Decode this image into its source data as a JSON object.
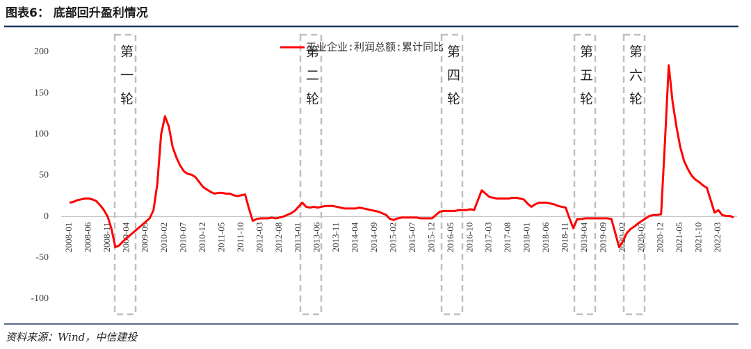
{
  "chart_data": {
    "type": "line",
    "title": "图表6： 底部回升盈利情况",
    "source": "资料来源：Wind，中信建投",
    "annotations": [
      "第一轮",
      "第二轮",
      "第四轮",
      "第五轮",
      "第六轮"
    ],
    "categories": [
      "2008-01",
      null,
      null,
      null,
      null,
      "2008-06",
      null,
      null,
      null,
      null,
      "2008-11",
      null,
      null,
      null,
      null,
      "2009-04",
      null,
      null,
      null,
      null,
      "2009-09",
      null,
      null,
      null,
      null,
      "2010-02",
      null,
      null,
      null,
      null,
      "2010-07",
      null,
      null,
      null,
      null,
      "2010-12",
      null,
      null,
      null,
      null,
      "2011-05",
      null,
      null,
      null,
      null,
      "2011-10",
      null,
      null,
      null,
      null,
      "2012-03",
      null,
      null,
      null,
      null,
      "2012-08",
      null,
      null,
      null,
      null,
      "2013-01",
      null,
      null,
      null,
      null,
      "2013-06",
      null,
      null,
      null,
      null,
      "2013-11",
      null,
      null,
      null,
      null,
      "2014-04",
      null,
      null,
      null,
      null,
      "2014-09",
      null,
      null,
      null,
      null,
      "2015-02",
      null,
      null,
      null,
      null,
      "2015-07",
      null,
      null,
      null,
      null,
      "2015-12",
      null,
      null,
      null,
      null,
      "2016-05",
      null,
      null,
      null,
      null,
      "2016-10",
      null,
      null,
      null,
      null,
      "2017-03",
      null,
      null,
      null,
      null,
      "2017-08",
      null,
      null,
      null,
      null,
      "2018-01",
      null,
      null,
      null,
      null,
      "2018-06",
      null,
      null,
      null,
      null,
      "2018-11",
      null,
      null,
      null,
      null,
      "2019-04",
      null,
      null,
      null,
      null,
      "2019-09",
      null,
      null,
      null,
      null,
      "2020-02",
      null,
      null,
      null,
      null,
      "2020-07",
      null,
      null,
      null,
      null,
      "2020-12",
      null,
      null,
      null,
      null,
      "2021-05",
      null,
      null,
      null,
      null,
      "2021-10",
      null,
      null,
      null,
      null,
      "2022-03",
      null,
      null,
      null,
      null
    ],
    "series": [
      {
        "name": "工业企业:利润总额:累计同比",
        "color": "#ff0000",
        "values": [
          17,
          18,
          20,
          21,
          22,
          22,
          21,
          19,
          14,
          8,
          0,
          -15,
          -37,
          -35,
          -30,
          -26,
          -22,
          -18,
          -14,
          -10,
          -6,
          -2,
          8,
          40,
          100,
          122,
          110,
          85,
          72,
          62,
          55,
          52,
          51,
          48,
          42,
          36,
          33,
          30,
          28,
          29,
          29,
          28,
          28,
          26,
          25,
          26,
          27,
          10,
          -5,
          -3,
          -2,
          -2,
          -2,
          -1,
          -2,
          -1,
          0,
          2,
          4,
          7,
          12,
          17,
          12,
          11,
          12,
          11,
          12,
          13,
          13,
          13,
          12,
          11,
          10,
          10,
          10,
          10,
          11,
          10,
          9,
          8,
          7,
          6,
          4,
          2,
          -3,
          -4,
          -2,
          -1,
          -1,
          -1,
          -1,
          -1,
          -2,
          -2,
          -2,
          -2,
          2,
          6,
          7,
          7,
          7,
          7,
          8,
          8,
          8,
          9,
          8,
          20,
          32,
          28,
          24,
          23,
          22,
          22,
          22,
          22,
          23,
          23,
          22,
          21,
          16,
          12,
          15,
          17,
          17,
          17,
          16,
          15,
          13,
          12,
          11,
          -2,
          -14,
          -3,
          -3,
          -2,
          -2,
          -2,
          -2,
          -2,
          -2,
          -2,
          -3,
          -20,
          -37,
          -30,
          -20,
          -15,
          -12,
          -8,
          -5,
          -2,
          1,
          2,
          2,
          3,
          90,
          184,
          140,
          110,
          85,
          68,
          58,
          50,
          45,
          42,
          38,
          35,
          20,
          5,
          8,
          2,
          1,
          1,
          -1
        ]
      }
    ],
    "ylim": [
      -100,
      200
    ],
    "yticks": [
      -100,
      -50,
      0,
      50,
      100,
      150,
      200
    ],
    "grid": false,
    "legend": "top"
  }
}
